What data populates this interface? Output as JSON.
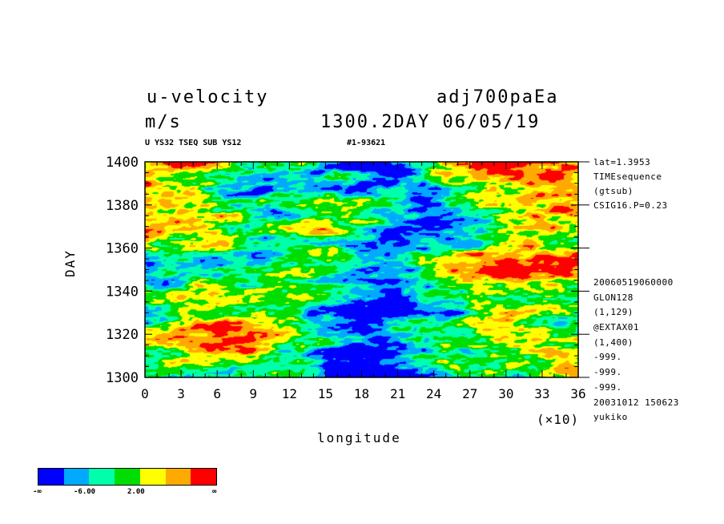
{
  "header": {
    "title_left": "u-velocity",
    "title_right": "adj700paEa",
    "units": "m/s",
    "time_label": "1300.2DAY 06/05/19",
    "sub_left": "U YS32 TSEQ SUB YS12",
    "sub_right": "#1-93621"
  },
  "side_info_top": [
    "lat=1.3953",
    "TIMEsequence",
    "(gtsub)",
    "CSIG16.P=0.23"
  ],
  "side_info_bottom": [
    "20060519060000",
    "GLON128",
    "(1,129)",
    "@EXTAX01",
    "(1,400)",
    "-999.",
    "-999.",
    "-999.",
    "20031012 150623",
    "yukiko"
  ],
  "colorbar": {
    "colors": [
      "#0000ff",
      "#00aaff",
      "#00ffaa",
      "#00dd00",
      "#ffff00",
      "#ffaa00",
      "#ff0000"
    ],
    "labels": [
      "-∞",
      "-6.00",
      "2.00",
      "∞"
    ]
  },
  "chart_data": {
    "type": "heatmap",
    "xlabel": "longitude",
    "ylabel": "DAY",
    "x_multiplier_label": "(×10)",
    "x_ticks": [
      "0",
      "3",
      "6",
      "9",
      "12",
      "15",
      "18",
      "21",
      "24",
      "27",
      "30",
      "33",
      "36"
    ],
    "y_ticks": [
      "1300",
      "1320",
      "1340",
      "1360",
      "1380",
      "1400"
    ],
    "xlim": [
      0,
      36
    ],
    "ylim": [
      1300,
      1400
    ],
    "grid": false
  }
}
